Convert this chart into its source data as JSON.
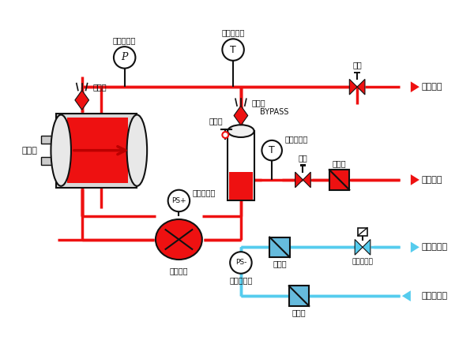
{
  "bg_color": "#ffffff",
  "red_color": "#ee1111",
  "cyan_color": "#55ccee",
  "black": "#111111",
  "heater_label": "加热器",
  "pump_label": "循环泵组",
  "pressure_label": "压力显示器",
  "high_pressure_label": "高压限制器",
  "low_pressure_label": "低压限制器",
  "temp_sensor1_label": "温度传感器",
  "temp_sensor2_label": "温度传感器",
  "exhaust1_label": "排气阀",
  "exhaust2_label": "排气阀",
  "relief_label": "溢压阀",
  "bypass_label": "BYPASS",
  "filter1_label": "过滤器",
  "filter2_label": "过滤器",
  "filter3_label": "过滤器",
  "ball_valve1_label": "球阀",
  "ball_valve2_label": "球阀",
  "solenoid_label": "冷却电磁阀",
  "out_hot_label": "热媒出口",
  "in_hot_label": "热媒回口",
  "out_cold_label": "冷却水出口",
  "in_cold_label": "冷却水入口"
}
